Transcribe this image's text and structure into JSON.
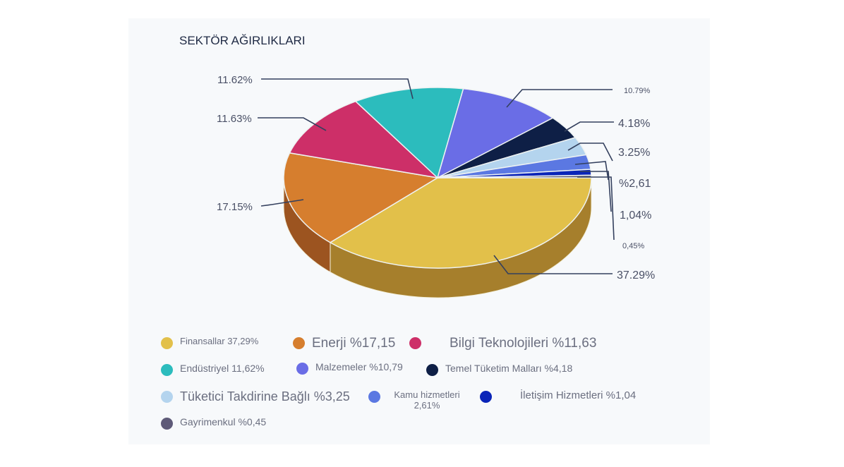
{
  "chart_data": {
    "type": "pie",
    "title": "SEKTÖR AĞIRLIKLARI",
    "three_d": true,
    "slices": [
      {
        "name": "Finansallar",
        "value": 37.29,
        "color": "#e2c04a",
        "side": "#a67f2c",
        "label": "37.29%",
        "legend": "Finansallar 37,29%"
      },
      {
        "name": "Enerji",
        "value": 17.15,
        "color": "#d67e2e",
        "side": "#9c5420",
        "label": "17.15%",
        "legend": "Enerji %17,15"
      },
      {
        "name": "Bilgi Teknolojileri",
        "value": 11.63,
        "color": "#cd2f68",
        "side": "#8e1f47",
        "label": "11.63%",
        "legend": "Bilgi Teknolojileri %11,63"
      },
      {
        "name": "Endüstriyel",
        "value": 11.62,
        "color": "#2cbcbd",
        "side": "#1d8485",
        "label": "11.62%",
        "legend": "Endüstriyel 11,62%"
      },
      {
        "name": "Malzemeler",
        "value": 10.79,
        "color": "#6a6de6",
        "side": "#4547a6",
        "label": "10.79%",
        "legend": "Malzemeler %10,79"
      },
      {
        "name": "Temel Tüketim Malları",
        "value": 4.18,
        "color": "#0e1f46",
        "side": "#08142e",
        "label": "4.18%",
        "legend": "Temel Tüketim Malları %4,18"
      },
      {
        "name": "Tüketici Takdirine Bağlı",
        "value": 3.25,
        "color": "#b4d4ee",
        "side": "#7f9ab2",
        "label": "3.25%",
        "legend": "Tüketici Takdirine Bağlı %3,25"
      },
      {
        "name": "Kamu hizmetleri",
        "value": 2.61,
        "color": "#5b78e2",
        "side": "#3d54a4",
        "label": "%2,61",
        "legend": "Kamu hizmetleri 2,61%"
      },
      {
        "name": "İletişim Hizmetleri",
        "value": 1.04,
        "color": "#0a24b8",
        "side": "#061780",
        "label": "1,04%",
        "legend": "İletişim Hizmetleri %1,04"
      },
      {
        "name": "Gayrimenkul",
        "value": 0.45,
        "color": "#5e5a78",
        "side": "#3e3b52",
        "label": "0,45%",
        "legend": "Gayrimenkul %0,45"
      }
    ]
  }
}
